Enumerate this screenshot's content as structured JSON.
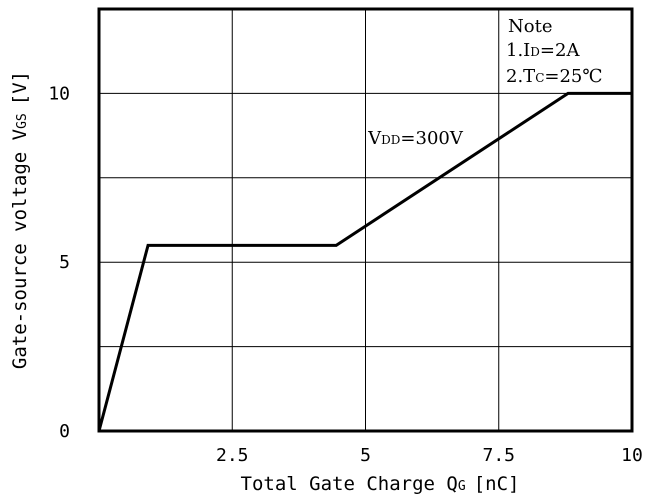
{
  "chart_data": {
    "type": "line",
    "xlabel": "Total Gate Charge Q",
    "xlabel_sub": "G",
    "xlabel_unit": "[nC]",
    "ylabel": "Gate-source voltage V",
    "ylabel_sub": "GS",
    "ylabel_unit": "[V]",
    "xlim": [
      0,
      10
    ],
    "ylim": [
      0,
      12.5
    ],
    "xticks": [
      2.5,
      5,
      7.5,
      10
    ],
    "xtick_labels": [
      "2.5",
      "5",
      "7.5",
      "10"
    ],
    "yticks": [
      0,
      5,
      10
    ],
    "ytick_labels": [
      "0",
      "5",
      "10"
    ],
    "grid": true,
    "x_grid": [
      2.5,
      5,
      7.5
    ],
    "y_grid": [
      2.5,
      5,
      7.5,
      10
    ],
    "series": [
      {
        "x": [
          0,
          0.92,
          4.45,
          8.8,
          10
        ],
        "y": [
          0,
          5.5,
          5.5,
          10,
          10
        ]
      }
    ],
    "annotation": {
      "main": "V",
      "sub": "DD",
      "rest": "=300V",
      "x": 5.05,
      "y": 8.5
    },
    "note": {
      "title": "Note",
      "line1_prefix": "1.I",
      "line1_sub": "D",
      "line1_rest": "=2A",
      "line2_prefix": "2.T",
      "line2_sub": "C",
      "line2_rest": "=25℃"
    }
  }
}
